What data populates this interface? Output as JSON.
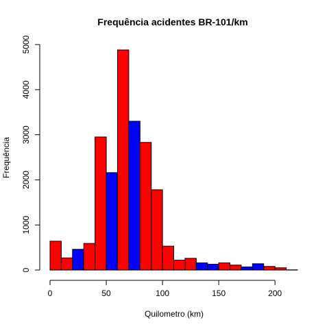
{
  "chart_data": {
    "type": "bar",
    "title": "Frequência acidentes BR-101/km",
    "xlabel": "Quilometro (km)",
    "ylabel": "Frequência",
    "bin_width": 10,
    "bins": [
      {
        "x0": 0,
        "x1": 10,
        "value": 640,
        "color": "#ff0000"
      },
      {
        "x0": 10,
        "x1": 20,
        "value": 270,
        "color": "#ff0000"
      },
      {
        "x0": 20,
        "x1": 30,
        "value": 460,
        "color": "#0000ff"
      },
      {
        "x0": 30,
        "x1": 40,
        "value": 590,
        "color": "#ff0000"
      },
      {
        "x0": 40,
        "x1": 50,
        "value": 2950,
        "color": "#ff0000"
      },
      {
        "x0": 50,
        "x1": 60,
        "value": 2160,
        "color": "#0000ff"
      },
      {
        "x0": 60,
        "x1": 70,
        "value": 4880,
        "color": "#ff0000"
      },
      {
        "x0": 70,
        "x1": 80,
        "value": 3300,
        "color": "#0000ff"
      },
      {
        "x0": 80,
        "x1": 90,
        "value": 2830,
        "color": "#ff0000"
      },
      {
        "x0": 90,
        "x1": 100,
        "value": 1780,
        "color": "#ff0000"
      },
      {
        "x0": 100,
        "x1": 110,
        "value": 530,
        "color": "#ff0000"
      },
      {
        "x0": 110,
        "x1": 120,
        "value": 220,
        "color": "#ff0000"
      },
      {
        "x0": 120,
        "x1": 130,
        "value": 260,
        "color": "#ff0000"
      },
      {
        "x0": 130,
        "x1": 140,
        "value": 160,
        "color": "#0000ff"
      },
      {
        "x0": 140,
        "x1": 150,
        "value": 130,
        "color": "#0000ff"
      },
      {
        "x0": 150,
        "x1": 160,
        "value": 160,
        "color": "#ff0000"
      },
      {
        "x0": 160,
        "x1": 170,
        "value": 110,
        "color": "#ff0000"
      },
      {
        "x0": 170,
        "x1": 180,
        "value": 70,
        "color": "#0000ff"
      },
      {
        "x0": 180,
        "x1": 190,
        "value": 140,
        "color": "#0000ff"
      },
      {
        "x0": 190,
        "x1": 200,
        "value": 80,
        "color": "#ff0000"
      },
      {
        "x0": 200,
        "x1": 210,
        "value": 50,
        "color": "#ff0000"
      },
      {
        "x0": 210,
        "x1": 220,
        "value": 5,
        "color": "#0000ff"
      }
    ],
    "xlim": [
      0,
      220
    ],
    "ylim": [
      0,
      5000
    ],
    "x_ticks": [
      0,
      50,
      100,
      150,
      200
    ],
    "y_ticks": [
      0,
      1000,
      2000,
      3000,
      4000,
      5000
    ],
    "grid": false,
    "legend": "none"
  }
}
